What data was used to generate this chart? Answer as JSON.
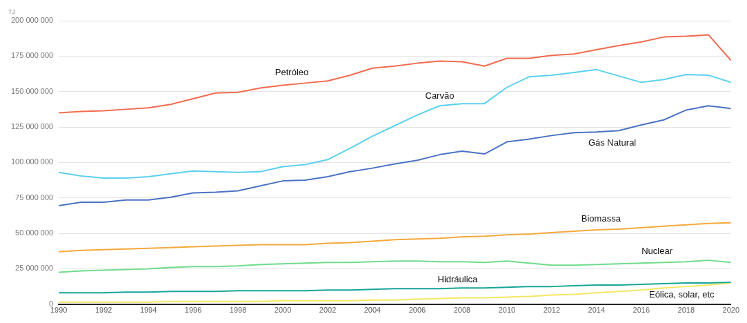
{
  "chart_data": {
    "type": "line",
    "ylabel": "TJ",
    "x": [
      1990,
      1991,
      1992,
      1993,
      1994,
      1995,
      1996,
      1997,
      1998,
      1999,
      2000,
      2001,
      2002,
      2003,
      2004,
      2005,
      2006,
      2007,
      2008,
      2009,
      2010,
      2011,
      2012,
      2013,
      2014,
      2015,
      2016,
      2017,
      2018,
      2019,
      2020
    ],
    "xlim": [
      1990,
      2020
    ],
    "xticks": [
      1990,
      1992,
      1994,
      1996,
      1998,
      2000,
      2002,
      2004,
      2006,
      2008,
      2010,
      2012,
      2014,
      2016,
      2018,
      2020
    ],
    "ylim": [
      0,
      200000000
    ],
    "yticks": [
      0,
      {
        "value": 25000000,
        "label": "25 000 000"
      },
      {
        "value": 50000000,
        "label": "50 000 000"
      },
      {
        "value": 75000000,
        "label": "75 000 000"
      },
      {
        "value": 100000000,
        "label": "100 000 000"
      },
      {
        "value": 125000000,
        "label": "125 000 000"
      },
      {
        "value": 150000000,
        "label": "150 000 000"
      },
      {
        "value": 175000000,
        "label": "175 000 000"
      },
      {
        "value": 200000000,
        "label": "200 000 000"
      }
    ],
    "grid": "y",
    "legend": false,
    "marker": "none",
    "line_style": "solid",
    "series": [
      {
        "name": "Petróleo",
        "color": "#f26b4f",
        "values": [
          135000000,
          136000000,
          136500000,
          137500000,
          138500000,
          141000000,
          145000000,
          149000000,
          149500000,
          152500000,
          154500000,
          156000000,
          157500000,
          161500000,
          166500000,
          168000000,
          170000000,
          171500000,
          171000000,
          168000000,
          173500000,
          173500000,
          175500000,
          176500000,
          179500000,
          182500000,
          185000000,
          188500000,
          189000000,
          190000000,
          172000000
        ]
      },
      {
        "name": "Carvão",
        "color": "#5bd0ee",
        "values": [
          93000000,
          90500000,
          89000000,
          89000000,
          90000000,
          92000000,
          94000000,
          93500000,
          93000000,
          93500000,
          97000000,
          98500000,
          102000000,
          110000000,
          118500000,
          126000000,
          133500000,
          140000000,
          141500000,
          141500000,
          153000000,
          160500000,
          161500000,
          163500000,
          165500000,
          161000000,
          156500000,
          158500000,
          162000000,
          161500000,
          156500000
        ]
      },
      {
        "name": "Gás Natural",
        "color": "#4a72c4",
        "values": [
          69500000,
          72000000,
          72000000,
          73500000,
          73500000,
          75500000,
          78500000,
          79000000,
          80000000,
          83500000,
          87000000,
          87500000,
          90000000,
          93500000,
          96000000,
          99000000,
          101500000,
          105500000,
          108000000,
          106000000,
          114500000,
          116500000,
          119000000,
          121000000,
          121500000,
          122500000,
          126500000,
          130000000,
          137000000,
          140000000,
          138000000
        ]
      },
      {
        "name": "Biomassa",
        "color": "#f5a83a",
        "values": [
          37000000,
          38000000,
          38500000,
          39000000,
          39500000,
          40000000,
          40500000,
          41000000,
          41500000,
          42000000,
          42000000,
          42000000,
          43000000,
          43500000,
          44500000,
          45500000,
          46000000,
          46500000,
          47500000,
          48000000,
          49000000,
          49500000,
          50500000,
          51500000,
          52500000,
          53000000,
          54000000,
          55000000,
          56000000,
          57000000,
          57500000
        ]
      },
      {
        "name": "Nuclear",
        "color": "#6fdc8c",
        "values": [
          22500000,
          23500000,
          24000000,
          24500000,
          25000000,
          26000000,
          26500000,
          26500000,
          27000000,
          28000000,
          28500000,
          29000000,
          29500000,
          29500000,
          30000000,
          30500000,
          30500000,
          30000000,
          30000000,
          29500000,
          30500000,
          29000000,
          27500000,
          27500000,
          28000000,
          28500000,
          29000000,
          29500000,
          30000000,
          31000000,
          29500000
        ]
      },
      {
        "name": "Hidráulica",
        "color": "#16a59a",
        "values": [
          8000000,
          8000000,
          8000000,
          8500000,
          8500000,
          9000000,
          9000000,
          9000000,
          9500000,
          9500000,
          9500000,
          9500000,
          10000000,
          10000000,
          10500000,
          11000000,
          11000000,
          11000000,
          11500000,
          11500000,
          12000000,
          12500000,
          12500000,
          13000000,
          13500000,
          13500000,
          14000000,
          14500000,
          15000000,
          15000000,
          15500000
        ]
      },
      {
        "name": "Eólica, solar, etc",
        "color": "#f5e663",
        "values": [
          1500000,
          1500000,
          1500000,
          1500000,
          1500000,
          2000000,
          2000000,
          2000000,
          2000000,
          2000000,
          2500000,
          2500000,
          2500000,
          2500000,
          3000000,
          3000000,
          3500000,
          4000000,
          4500000,
          4500000,
          5000000,
          5500000,
          6500000,
          7000000,
          8000000,
          9000000,
          10000000,
          11500000,
          12500000,
          13500000,
          15000000
        ]
      }
    ]
  }
}
